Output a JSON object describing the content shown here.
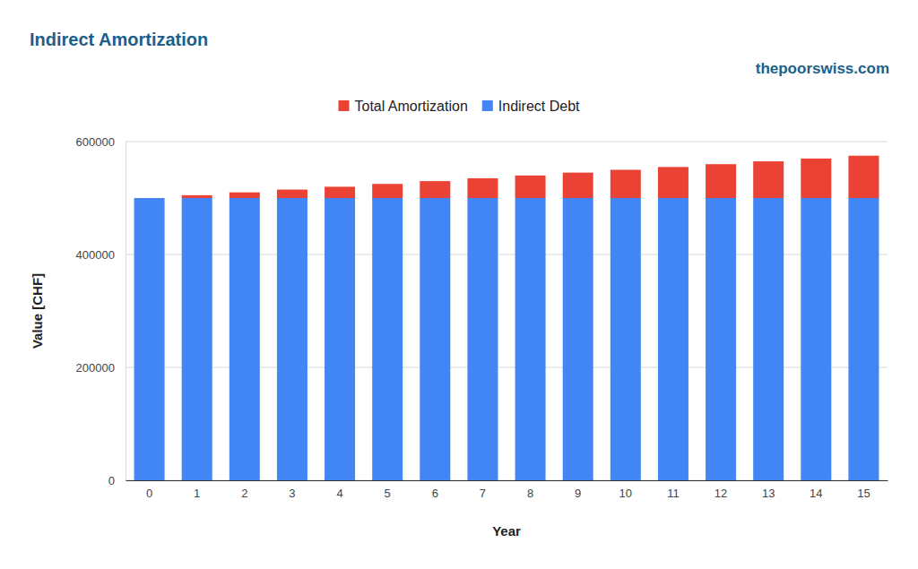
{
  "chart_data": {
    "type": "bar",
    "title": "Indirect Amortization",
    "subtitle": "thepoorswiss.com",
    "x_label": "Year",
    "y_label": "Value [CHF]",
    "categories": [
      "0",
      "1",
      "2",
      "3",
      "4",
      "5",
      "6",
      "7",
      "8",
      "9",
      "10",
      "11",
      "12",
      "13",
      "14",
      "15"
    ],
    "series": [
      {
        "name": "Indirect Debt",
        "color": "#4285f4",
        "values": [
          500000,
          500000,
          500000,
          500000,
          500000,
          500000,
          500000,
          500000,
          500000,
          500000,
          500000,
          500000,
          500000,
          500000,
          500000,
          500000
        ]
      },
      {
        "name": "Total Amortization",
        "color": "#ea4335",
        "values": [
          0,
          5000,
          10000,
          15000,
          20000,
          25000,
          30000,
          35000,
          40000,
          45000,
          50000,
          55000,
          60000,
          65000,
          70000,
          75000
        ]
      }
    ],
    "stacked": true,
    "legend": "top",
    "grid": true,
    "ylim": [
      0,
      600000
    ],
    "yticks": [
      0,
      200000,
      400000,
      600000
    ]
  }
}
